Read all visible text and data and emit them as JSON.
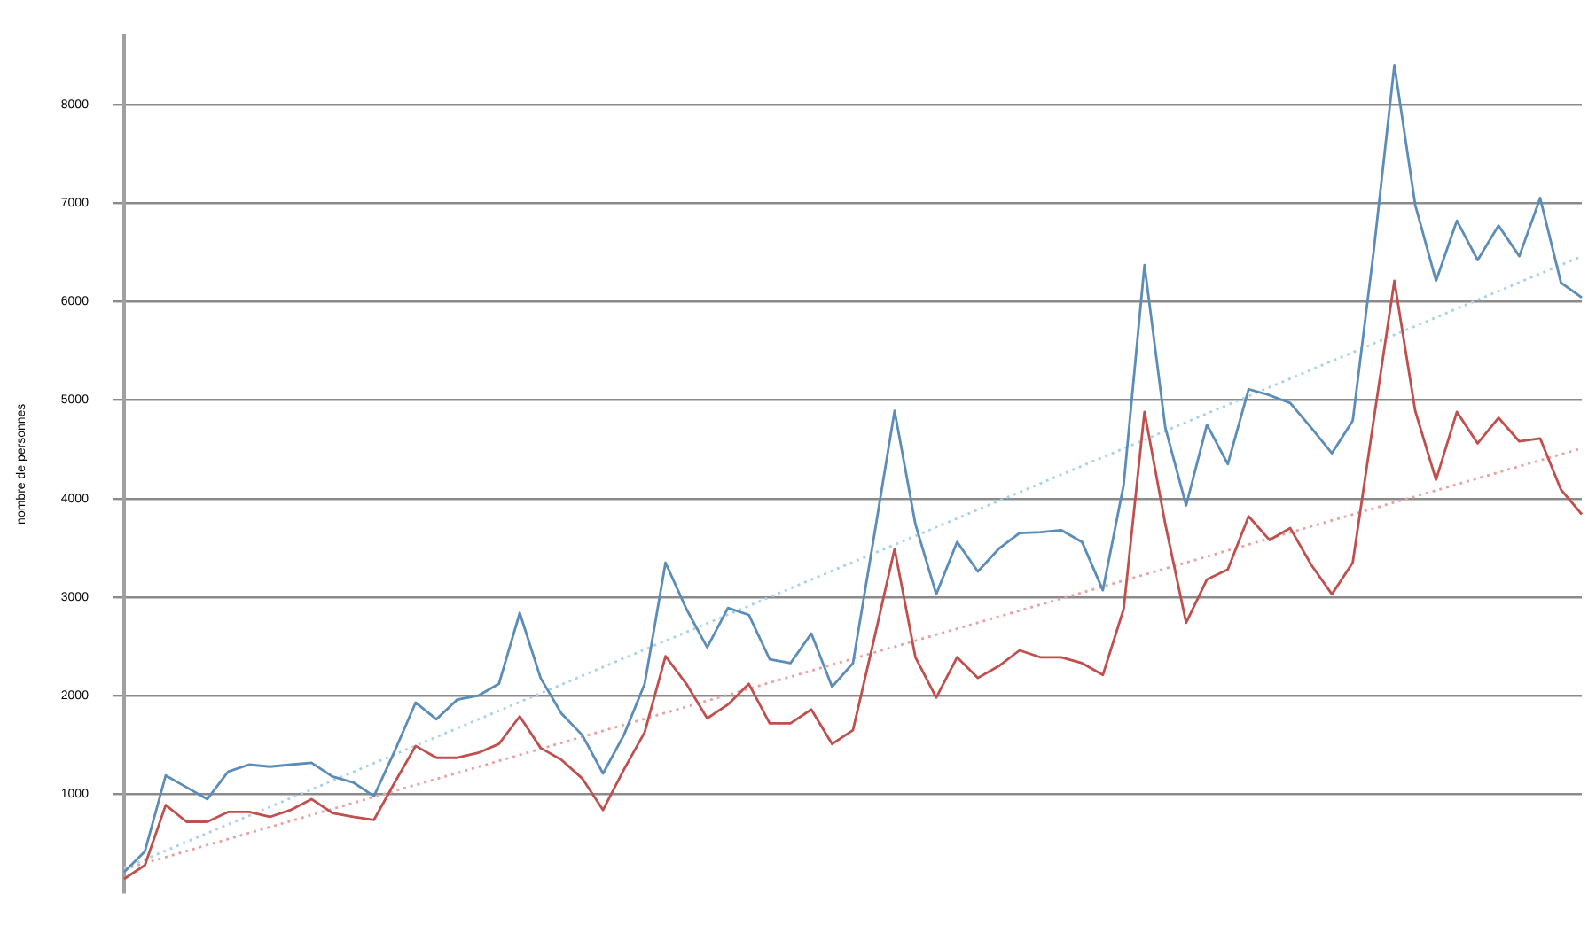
{
  "chart_data": {
    "type": "line",
    "ylabel": "nombre de personnes",
    "categories": [
      null,
      null,
      null,
      null,
      null,
      null,
      null,
      null,
      null,
      null,
      null,
      null,
      null,
      null,
      null,
      null,
      null,
      null,
      null,
      null,
      null,
      null,
      null,
      null,
      null,
      null,
      null,
      null,
      null,
      null,
      null,
      null,
      null,
      null,
      null,
      null,
      null,
      null,
      null,
      null,
      null,
      null,
      null,
      null,
      null,
      null,
      null,
      null,
      null,
      null,
      null,
      null,
      null,
      null,
      null,
      null,
      null,
      null,
      null,
      null,
      null,
      null,
      null,
      null,
      null,
      null,
      null,
      null,
      null,
      null,
      null
    ],
    "series": [
      {
        "color": "#5b8db8",
        "line_style": "solid",
        "values": [
          210,
          420,
          1190,
          1070,
          950,
          1230,
          1300,
          1280,
          1300,
          1320,
          1180,
          1120,
          980,
          1440,
          1930,
          1760,
          1960,
          2000,
          2120,
          2840,
          2180,
          1820,
          1600,
          1210,
          1600,
          2120,
          3350,
          2880,
          2490,
          2890,
          2820,
          2370,
          2330,
          2630,
          2090,
          2330,
          3600,
          4890,
          3740,
          3030,
          3560,
          3260,
          3490,
          3650,
          3660,
          3680,
          3560,
          3070,
          4140,
          6370,
          4720,
          3930,
          4750,
          4350,
          5110,
          5050,
          4970,
          4720,
          4460,
          4790,
          6500,
          8400,
          6980,
          6210,
          6820,
          6420,
          6770,
          6460,
          7050,
          6190,
          6040
        ]
      },
      {
        "color": "#c0504d",
        "line_style": "solid",
        "values": [
          140,
          280,
          890,
          720,
          720,
          820,
          820,
          770,
          840,
          950,
          810,
          770,
          740,
          1120,
          1490,
          1370,
          1370,
          1420,
          1510,
          1790,
          1470,
          1350,
          1160,
          840,
          1250,
          1630,
          2400,
          2120,
          1770,
          1910,
          2120,
          1720,
          1720,
          1860,
          1510,
          1650,
          2560,
          3490,
          2390,
          1980,
          2390,
          2180,
          2300,
          2460,
          2390,
          2390,
          2330,
          2210,
          2880,
          4880,
          3740,
          2740,
          3180,
          3280,
          3820,
          3580,
          3700,
          3330,
          3030,
          3350,
          4790,
          6210,
          4890,
          4190,
          4880,
          4560,
          4820,
          4580,
          4610,
          4090,
          3840
        ]
      },
      {
        "color": "#a9d1e8",
        "line_style": "dotted",
        "values": [
          250,
          null,
          null,
          null,
          null,
          null,
          null,
          null,
          null,
          null,
          null,
          null,
          null,
          null,
          null,
          null,
          null,
          null,
          null,
          null,
          null,
          null,
          null,
          null,
          null,
          null,
          null,
          null,
          null,
          null,
          null,
          null,
          null,
          null,
          null,
          null,
          null,
          null,
          null,
          null,
          null,
          null,
          null,
          null,
          null,
          null,
          null,
          null,
          null,
          null,
          null,
          null,
          null,
          null,
          null,
          null,
          null,
          null,
          null,
          null,
          null,
          null,
          null,
          null,
          null,
          null,
          null,
          null,
          null,
          null,
          6460
        ]
      },
      {
        "color": "#e6a3a3",
        "line_style": "dotted",
        "values": [
          240,
          null,
          null,
          null,
          null,
          null,
          null,
          null,
          null,
          null,
          null,
          null,
          null,
          null,
          null,
          null,
          null,
          null,
          null,
          null,
          null,
          null,
          null,
          null,
          null,
          null,
          null,
          null,
          null,
          null,
          null,
          null,
          null,
          null,
          null,
          null,
          null,
          null,
          null,
          null,
          null,
          null,
          null,
          null,
          null,
          null,
          null,
          null,
          null,
          null,
          null,
          null,
          null,
          null,
          null,
          null,
          null,
          null,
          null,
          null,
          null,
          null,
          null,
          null,
          null,
          null,
          null,
          null,
          null,
          null,
          4510
        ]
      }
    ],
    "ylim": [
      0,
      8700
    ],
    "yticks": [
      1000,
      2000,
      3000,
      4000,
      5000,
      6000,
      7000,
      8000
    ],
    "grid": "y",
    "tick_labels": "y",
    "legend": false,
    "marker": "none"
  }
}
